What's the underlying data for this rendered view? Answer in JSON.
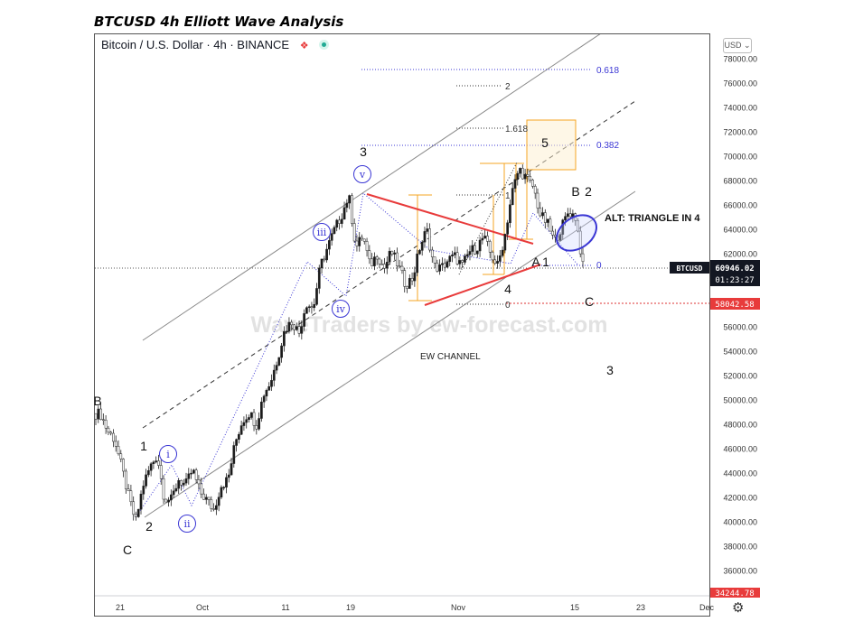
{
  "page_title": "BTCUSD 4h Elliott Wave Analysis",
  "header": {
    "symbol_label": "Bitcoin / U.S. Dollar · 4h · BINANCE",
    "currency": "USD ⌄"
  },
  "icons": [
    "red-marker-icon",
    "live-dot-icon",
    "gear-icon"
  ],
  "colors": {
    "up": "#1a1a1a",
    "down": "#ffffff",
    "wave": "#3b37d4",
    "triangle": "#e83b3b",
    "fib_box": "#f5a623"
  },
  "chart_data": {
    "type": "candlestick",
    "ylim": [
      34244.78,
      80000
    ],
    "y_ticks": [
      36000,
      38000,
      40000,
      42000,
      44000,
      46000,
      48000,
      50000,
      52000,
      54000,
      56000,
      58000,
      60000,
      62000,
      64000,
      66000,
      68000,
      70000,
      72000,
      74000,
      76000,
      78000
    ],
    "x_ticks": [
      "21",
      "Oct",
      "11",
      "19",
      "Nov",
      "15",
      "23",
      "Dec"
    ],
    "price_tags": [
      {
        "symbol": "BTCUSD",
        "value": "60946.02",
        "time": "01:23:27"
      },
      {
        "value": "58042.58"
      },
      {
        "value": "34244.78"
      }
    ],
    "price_path": [
      [
        48900,
        48900
      ],
      [
        47500,
        46800
      ],
      [
        44500,
        42000
      ],
      [
        40000,
        43000
      ],
      [
        44500,
        45500
      ],
      [
        42000,
        41800
      ],
      [
        43500,
        43000
      ],
      [
        44300,
        42500
      ],
      [
        41800,
        41000
      ],
      [
        43000,
        43500
      ],
      [
        46500,
        48300
      ],
      [
        49000,
        48000
      ],
      [
        50500,
        51500
      ],
      [
        53500,
        55800
      ],
      [
        56500,
        55500
      ],
      [
        58000,
        57500
      ],
      [
        61000,
        62500
      ],
      [
        64000,
        65200
      ],
      [
        66800,
        62500
      ],
      [
        63500,
        61000
      ],
      [
        62000,
        60800
      ],
      [
        62200,
        61000
      ],
      [
        59500,
        60000
      ],
      [
        62500,
        64000
      ],
      [
        61000,
        60800
      ],
      [
        61500,
        61800
      ],
      [
        61000,
        62200
      ],
      [
        62500,
        63400
      ],
      [
        62000,
        61000
      ],
      [
        63500,
        67000
      ],
      [
        69000,
        68200
      ],
      [
        67500,
        65200
      ],
      [
        64500,
        63000
      ],
      [
        64200,
        65500
      ],
      [
        65000,
        60946
      ]
    ],
    "wave_labels": [
      {
        "text": "B"
      },
      {
        "text": "C"
      },
      {
        "text": "1"
      },
      {
        "text": "2"
      },
      {
        "text": "i",
        "circled": true
      },
      {
        "text": "ii",
        "circled": true
      },
      {
        "text": "iii",
        "circled": true
      },
      {
        "text": "iv",
        "circled": true
      },
      {
        "text": "v",
        "circled": true
      },
      {
        "text": "3"
      },
      {
        "text": "4"
      },
      {
        "text": "5"
      },
      {
        "text": "A"
      },
      {
        "text": "1"
      },
      {
        "text": "B"
      },
      {
        "text": "2"
      },
      {
        "text": "C"
      },
      {
        "text": "3"
      }
    ],
    "fib_labels": [
      "0.618",
      "2",
      "1.618",
      "0.382",
      "1",
      "0",
      "0"
    ],
    "annotations": [
      "EW CHANNEL",
      "ALT: TRIANGLE IN 4"
    ],
    "watermark": "WaveTraders by ew-forecast.com"
  }
}
